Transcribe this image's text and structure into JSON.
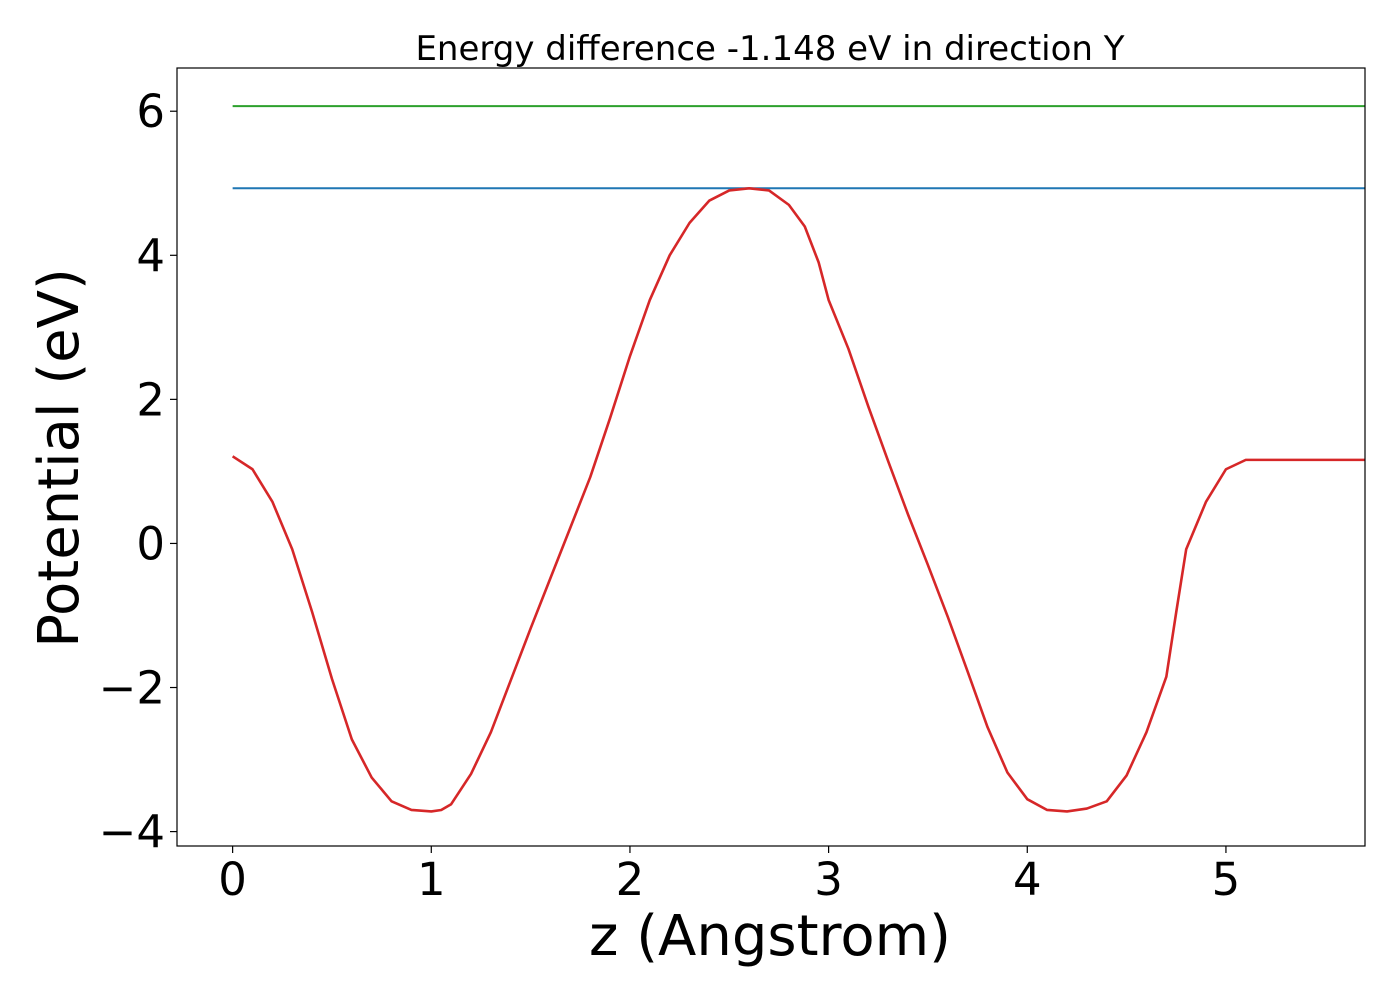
{
  "chart_data": {
    "type": "line",
    "title": "Energy difference -1.148 eV in direction Y",
    "xlabel": "z (Angstrom)",
    "ylabel": "Potential (eV)",
    "xlim": [
      -0.28,
      5.7
    ],
    "ylim": [
      -4.2,
      6.6
    ],
    "xticks": [
      0,
      1,
      2,
      3,
      4,
      5
    ],
    "yticks": [
      -4,
      -2,
      0,
      2,
      4,
      6
    ],
    "xtick_labels": [
      "0",
      "1",
      "2",
      "3",
      "4",
      "5"
    ],
    "ytick_labels": [
      "−4",
      "−2",
      "0",
      "2",
      "4",
      "6"
    ],
    "grid": false,
    "legend": "none",
    "series": [
      {
        "color": "#2ca02c",
        "x": [
          0,
          5.7
        ],
        "y": [
          6.07,
          6.07
        ]
      },
      {
        "color": "#1f77b4",
        "x": [
          0,
          5.7
        ],
        "y": [
          4.93,
          4.93
        ]
      },
      {
        "color": "#d62728",
        "x": [
          0.0,
          0.1,
          0.2,
          0.3,
          0.4,
          0.5,
          0.6,
          0.7,
          0.8,
          0.9,
          1.0,
          1.05,
          1.1,
          1.2,
          1.3,
          1.4,
          1.5,
          1.6,
          1.7,
          1.8,
          1.9,
          2.0,
          2.1,
          2.2,
          2.3,
          2.4,
          2.5,
          2.6,
          2.7,
          2.8,
          2.88,
          2.95,
          3.0,
          3.1,
          3.2,
          3.3,
          3.4,
          3.5,
          3.6,
          3.7,
          3.8,
          3.9,
          4.0,
          4.1,
          4.2,
          4.3,
          4.4,
          4.5,
          4.6,
          4.7,
          4.75,
          4.8,
          4.9,
          5.0,
          5.1,
          5.2,
          5.3,
          5.4,
          5.5,
          5.6,
          5.7
        ],
        "y": [
          1.21,
          1.03,
          0.58,
          -0.08,
          -0.95,
          -1.88,
          -2.72,
          -3.25,
          -3.58,
          -3.7,
          -3.72,
          -3.7,
          -3.62,
          -3.2,
          -2.62,
          -1.9,
          -1.18,
          -0.48,
          0.22,
          0.92,
          1.74,
          2.6,
          3.38,
          4.0,
          4.45,
          4.76,
          4.9,
          4.93,
          4.9,
          4.7,
          4.4,
          3.9,
          3.38,
          2.7,
          1.9,
          1.14,
          0.4,
          -0.3,
          -1.02,
          -1.78,
          -2.55,
          -3.18,
          -3.55,
          -3.7,
          -3.72,
          -3.68,
          -3.58,
          -3.22,
          -2.62,
          -1.85,
          -0.95,
          -0.08,
          0.58,
          1.03,
          1.16,
          1.16,
          1.16,
          1.16,
          1.16,
          1.16,
          1.16
        ]
      }
    ]
  }
}
